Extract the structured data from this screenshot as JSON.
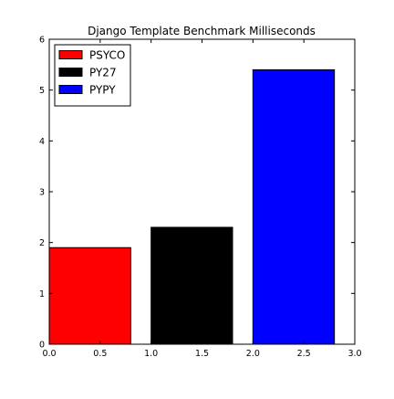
{
  "chart_data": {
    "type": "bar",
    "title": "Django Template Benchmark Milliseconds",
    "xlabel": "",
    "ylabel": "",
    "xlim": [
      0.0,
      3.0
    ],
    "ylim": [
      0,
      6
    ],
    "xticks": [
      "0.0",
      "0.5",
      "1.0",
      "1.5",
      "2.0",
      "2.5",
      "3.0"
    ],
    "yticks": [
      "0",
      "1",
      "2",
      "3",
      "4",
      "5",
      "6"
    ],
    "grid": false,
    "legend_position": "top-left",
    "series": [
      {
        "name": "PSYCO",
        "x": 0.0,
        "width": 0.8,
        "value": 1.9,
        "color": "#ff0000"
      },
      {
        "name": "PY27",
        "x": 1.0,
        "width": 0.8,
        "value": 2.3,
        "color": "#000000"
      },
      {
        "name": "PYPY",
        "x": 2.0,
        "width": 0.8,
        "value": 5.4,
        "color": "#0000ff"
      }
    ]
  }
}
